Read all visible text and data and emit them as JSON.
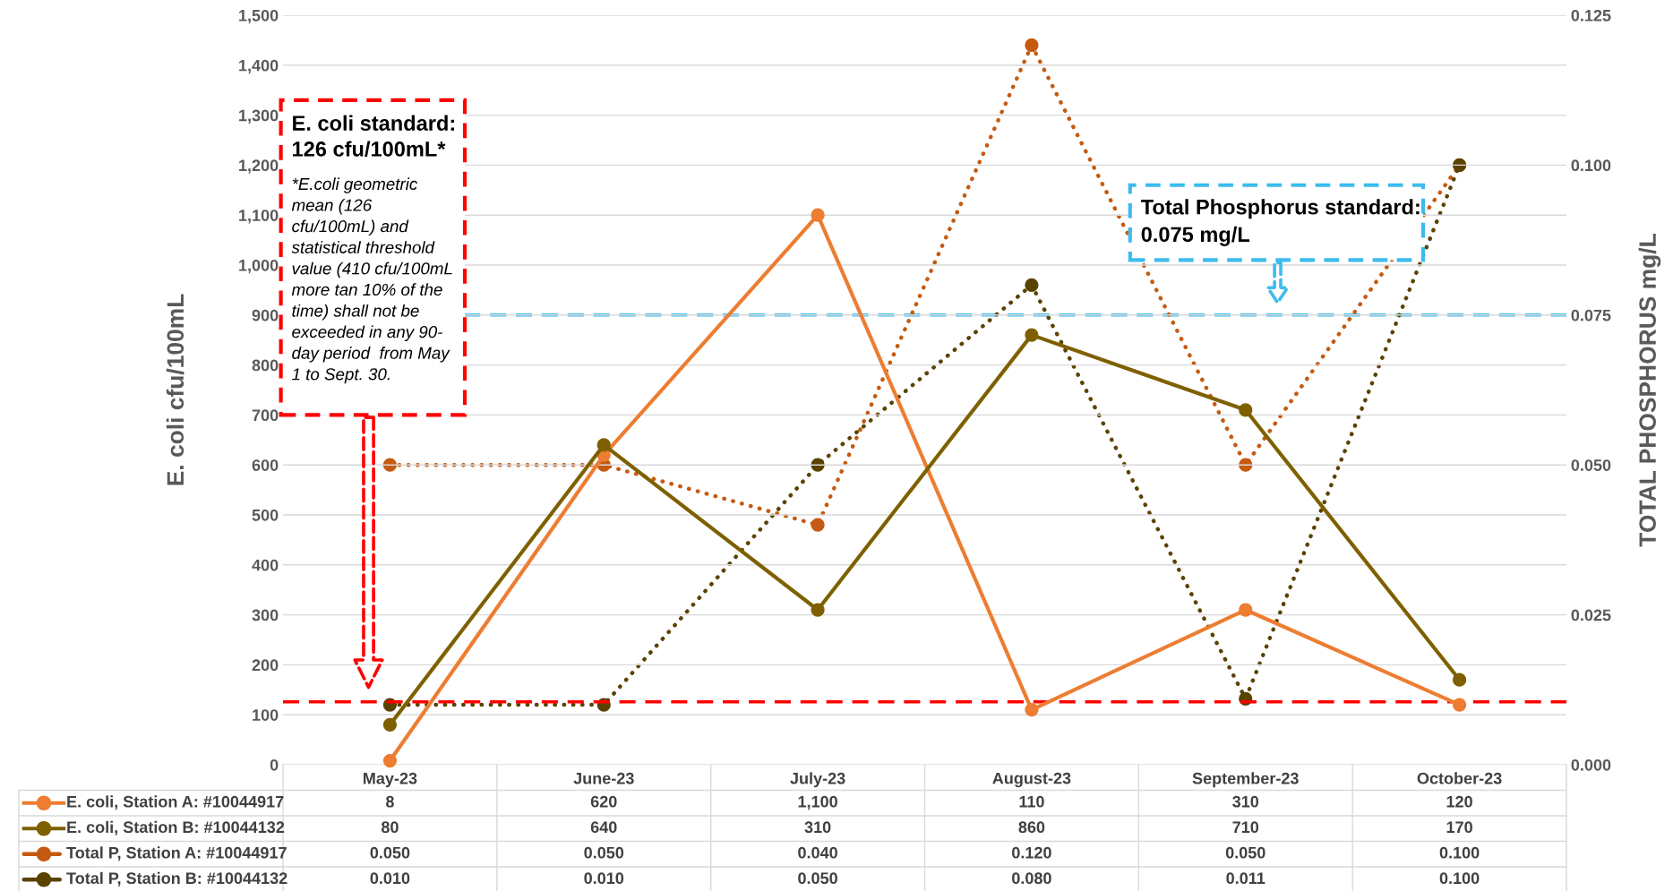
{
  "chart_data": {
    "type": "line",
    "ylabel": "E. coli cfu/100mL",
    "y2label": "TOTAL PHOSPHORUS mg/L",
    "categories": [
      "May-23",
      "June-23",
      "July-23",
      "August-23",
      "September-23",
      "October-23"
    ],
    "series": [
      {
        "name": "E. coli, Station A: #10044917",
        "color": "#ed7d31",
        "line_style": "solid",
        "values": [
          8,
          620,
          1100,
          110,
          310,
          120
        ],
        "value_labels": [
          "8",
          "620",
          "1,100",
          "110",
          "310",
          "120"
        ]
      },
      {
        "name": "E. coli, Station B: #10044132",
        "color": "#7f6000",
        "line_style": "solid",
        "values": [
          80,
          640,
          310,
          860,
          710,
          170
        ],
        "value_labels": [
          "80",
          "640",
          "310",
          "860",
          "710",
          "170"
        ]
      },
      {
        "name": "Total P, Station A: #10044917",
        "color": "#c55a11",
        "line_style": "dotted",
        "axis": "y2",
        "values": [
          0.05,
          0.05,
          0.04,
          0.12,
          0.05,
          0.1
        ],
        "value_labels": [
          "0.050",
          "0.050",
          "0.040",
          "0.120",
          "0.050",
          "0.100"
        ]
      },
      {
        "name": "Total P, Station B: #10044132",
        "color": "#5a4300",
        "line_style": "dotted",
        "axis": "y2",
        "values": [
          0.01,
          0.01,
          0.05,
          0.08,
          0.011,
          0.1
        ],
        "value_labels": [
          "0.010",
          "0.010",
          "0.050",
          "0.080",
          "0.011",
          "0.100"
        ]
      }
    ],
    "ylim": [
      0,
      1500
    ],
    "yticks": [
      0,
      100,
      200,
      300,
      400,
      500,
      600,
      700,
      800,
      900,
      {
        "value": 1000,
        "label": "1,000"
      },
      {
        "value": 1100,
        "label": "1,100"
      },
      {
        "value": 1200,
        "label": "1,200"
      },
      {
        "value": 1300,
        "label": "1,300"
      },
      {
        "value": 1400,
        "label": "1,400"
      },
      {
        "value": 1500,
        "label": "1,500"
      }
    ],
    "y2lim": [
      0,
      0.125
    ],
    "y2ticks": [
      {
        "value": 0,
        "label": "0.000"
      },
      {
        "value": 0.025,
        "label": "0.025"
      },
      {
        "value": 0.05,
        "label": "0.050"
      },
      {
        "value": 0.075,
        "label": "0.075"
      },
      {
        "value": 0.1,
        "label": "0.100"
      },
      {
        "value": 0.125,
        "label": "0.125"
      }
    ],
    "ref_lines": [
      {
        "axis": "y",
        "value": 126,
        "color": "#ff0000",
        "line_style": "dashed"
      },
      {
        "axis": "y2",
        "value": 0.075,
        "color": "#3cbcee",
        "line_style": "dashed"
      }
    ],
    "annotations": [
      "E. coli standard:\n126 cfu/100mL*",
      "*E.coli geometric\nmean (126\ncfu/100mL) and\nstatistical threshold\nvalue (410 cfu/100mL\nmore tan 10% of the\ntime) shall not be\nexceeded in any 90-\nday period  from May\n1 to Sept. 30.",
      "Total Phosphorus standard:\n0.075 mg/L"
    ],
    "marker": "circle",
    "grid": "y",
    "legend": "bottom",
    "data_labels": true
  }
}
